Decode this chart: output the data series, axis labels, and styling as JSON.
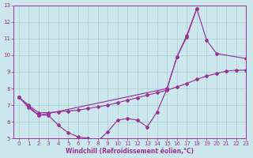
{
  "bg_color": "#cce8ee",
  "line_color": "#993399",
  "grid_color": "#aacccc",
  "xlabel": "Windchill (Refroidissement éolien,°C)",
  "xlim": [
    -0.5,
    23
  ],
  "ylim": [
    5,
    13
  ],
  "yticks": [
    5,
    6,
    7,
    8,
    9,
    10,
    11,
    12,
    13
  ],
  "xticks": [
    0,
    1,
    2,
    3,
    4,
    5,
    6,
    7,
    8,
    9,
    10,
    11,
    12,
    13,
    14,
    15,
    16,
    17,
    18,
    19,
    20,
    21,
    22,
    23
  ],
  "curve1_x": [
    0,
    1,
    2,
    3,
    4,
    5,
    6,
    7,
    8,
    9,
    10,
    11,
    12,
    13,
    14,
    15,
    16,
    17,
    18
  ],
  "curve1_y": [
    7.5,
    6.85,
    6.4,
    6.4,
    5.8,
    5.35,
    5.1,
    5.0,
    4.85,
    5.4,
    6.1,
    6.2,
    6.1,
    5.7,
    6.6,
    8.0,
    9.9,
    11.2,
    12.8
  ],
  "curve2_x": [
    0,
    2,
    3,
    15,
    16,
    17,
    18,
    19,
    20,
    23
  ],
  "curve2_y": [
    7.5,
    6.4,
    6.5,
    8.0,
    9.9,
    11.1,
    12.8,
    10.9,
    10.1,
    9.8
  ],
  "curve3_x": [
    0,
    1,
    2,
    3,
    4,
    5,
    6,
    7,
    8,
    9,
    10,
    11,
    12,
    13,
    14,
    15,
    16,
    17,
    18,
    19,
    20,
    21,
    22,
    23
  ],
  "curve3_y": [
    7.5,
    7.0,
    6.55,
    6.55,
    6.6,
    6.65,
    6.7,
    6.8,
    6.9,
    7.0,
    7.15,
    7.3,
    7.45,
    7.6,
    7.75,
    7.9,
    8.1,
    8.3,
    8.55,
    8.75,
    8.9,
    9.05,
    9.1,
    9.1
  ]
}
